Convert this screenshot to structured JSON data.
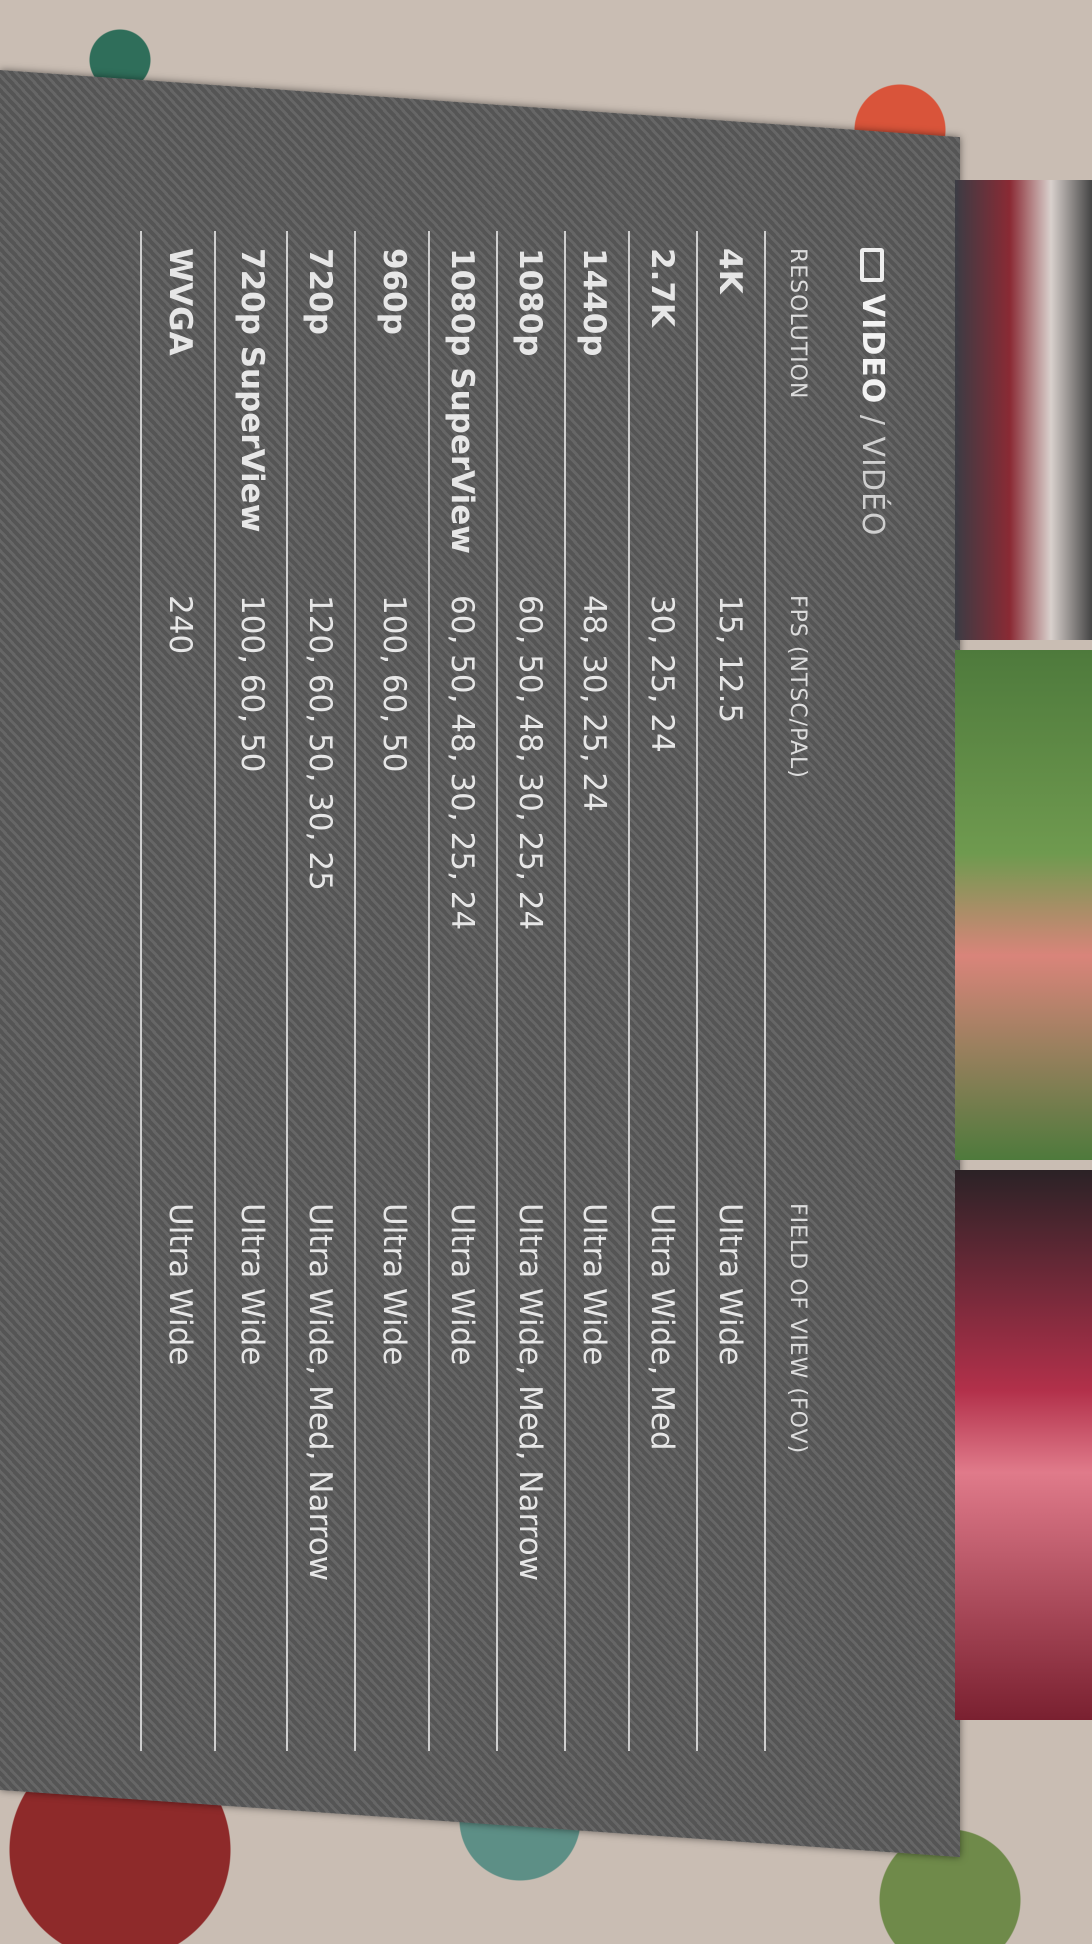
{
  "header": {
    "title": "VIDEO",
    "separator": " / ",
    "subtitle": "VIDÉO",
    "icon": "video-camera-icon"
  },
  "columns": [
    "RESOLUTION",
    "FPS (NTSC/PAL)",
    "FIELD OF VIEW (FOV)"
  ],
  "rows": [
    {
      "resolution": "4K",
      "fps": "15, 12.5",
      "fov": "Ultra Wide"
    },
    {
      "resolution": "2.7K",
      "fps": "30, 25, 24",
      "fov": "Ultra Wide, Med"
    },
    {
      "resolution": "1440p",
      "fps": "48, 30, 25, 24",
      "fov": "Ultra Wide"
    },
    {
      "resolution": "1080p",
      "fps": "60, 50, 48, 30, 25, 24",
      "fov": "Ultra Wide, Med, Narrow"
    },
    {
      "resolution": "1080p SuperView",
      "fps": "60, 50, 48, 30, 25, 24",
      "fov": "Ultra Wide"
    },
    {
      "resolution": "960p",
      "fps": "100, 60, 50",
      "fov": "Ultra Wide"
    },
    {
      "resolution": "720p",
      "fps": "120, 60, 50, 30, 25",
      "fov": "Ultra Wide, Med, Narrow"
    },
    {
      "resolution": "720p SuperView",
      "fps": "100, 60, 50",
      "fov": "Ultra Wide"
    },
    {
      "resolution": "WVGA",
      "fps": "240",
      "fov": "Ultra Wide"
    }
  ],
  "colors": {
    "panel": "#5f5f5f",
    "text": "#e6e6e6"
  }
}
